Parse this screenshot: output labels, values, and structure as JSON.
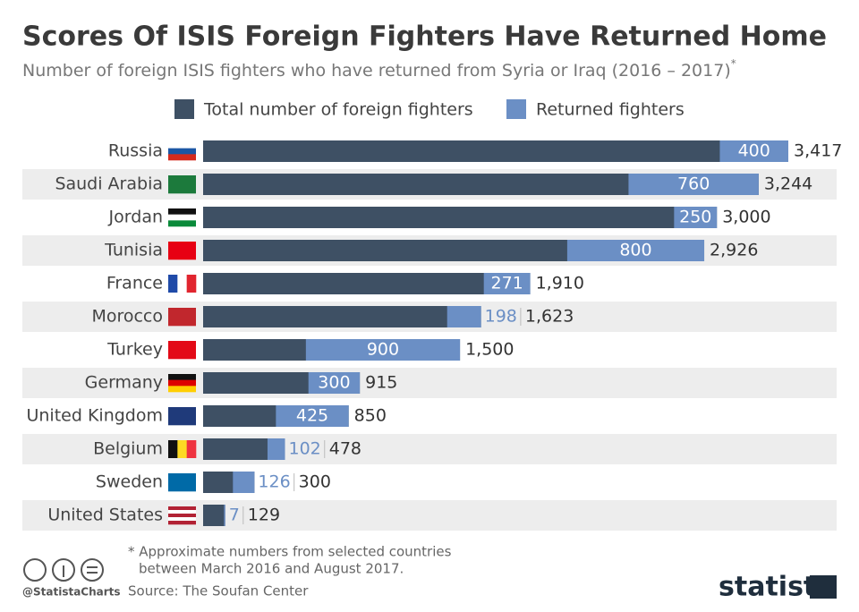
{
  "chart_data": {
    "type": "bar",
    "orientation": "horizontal",
    "title": "Scores Of ISIS Foreign Fighters Have Returned Home",
    "subtitle": "Number of foreign ISIS fighters who have returned from Syria or Iraq (2016 – 2017)",
    "subtitle_marker": "*",
    "categories": [
      "Russia",
      "Saudi Arabia",
      "Jordan",
      "Tunisia",
      "France",
      "Morocco",
      "Turkey",
      "Germany",
      "United Kingdom",
      "Belgium",
      "Sweden",
      "United States"
    ],
    "series": [
      {
        "name": "Total number of foreign fighters",
        "color": "#3e5064",
        "values": [
          3417,
          3244,
          3000,
          2926,
          1910,
          1623,
          1500,
          915,
          850,
          478,
          300,
          129
        ],
        "value_labels": [
          "3,417",
          "3,244",
          "3,000",
          "2,926",
          "1,910",
          "1,623",
          "1,500",
          "915",
          "850",
          "478",
          "300",
          "129"
        ]
      },
      {
        "name": "Returned fighters",
        "color": "#6b8fc5",
        "values": [
          400,
          760,
          250,
          800,
          271,
          198,
          900,
          300,
          425,
          102,
          126,
          7
        ]
      }
    ]
  },
  "footer": {
    "note": [
      "* Approximate numbers from selected countries",
      "between March 2016 and August 2017."
    ],
    "source": "Source: The Soufan Center",
    "credit": "@StatistaCharts",
    "brand": "statista"
  }
}
